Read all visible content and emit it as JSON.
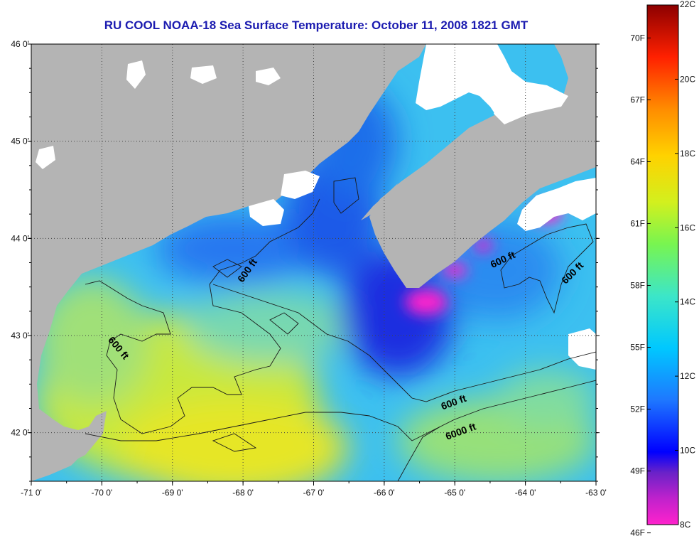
{
  "title": "RU COOL  NOAA-18  Sea Surface Temperature:  October 11, 2008 1821 GMT",
  "map": {
    "lon_range": [
      -71,
      -63
    ],
    "lat_range": [
      41.5,
      46
    ],
    "lon_ticks": [
      -71,
      -70,
      -69,
      -68,
      -67,
      -66,
      -65,
      -64,
      -63
    ],
    "lat_ticks": [
      42,
      43,
      44,
      45,
      46
    ],
    "lon_labels": [
      "-71 0'",
      "-70 0'",
      "-69 0'",
      "-68 0'",
      "-67 0'",
      "-66 0'",
      "-65 0'",
      "-64 0'",
      "-63 0'"
    ],
    "lat_labels": [
      "42 0'",
      "43 0'",
      "44 0'",
      "45 0'",
      "46 0'"
    ],
    "grid": "dotted",
    "land_color": "#b4b4b4",
    "cloud_color": "#ffffff"
  },
  "contour_labels": [
    {
      "text": "600 ft",
      "lon": -67.9,
      "lat": 43.65,
      "angle": -55
    },
    {
      "text": "600 ft",
      "lon": -69.8,
      "lat": 42.85,
      "angle": 50
    },
    {
      "text": "600 ft",
      "lon": -64.3,
      "lat": 43.75,
      "angle": -25
    },
    {
      "text": "600 ft",
      "lon": -63.3,
      "lat": 43.62,
      "angle": -45
    },
    {
      "text": "600 ft",
      "lon": -65.0,
      "lat": 42.28,
      "angle": -20
    },
    {
      "text": "6000 ft",
      "lon": -64.9,
      "lat": 41.98,
      "angle": -20
    }
  ],
  "colorbar": {
    "range_c": [
      8,
      22
    ],
    "celsius_labels": [
      "22C",
      "20C",
      "18C",
      "16C",
      "14C",
      "12C",
      "10C",
      "8C"
    ],
    "celsius_values": [
      22,
      20,
      18,
      16,
      14,
      12,
      10,
      8
    ],
    "fahrenheit_labels": [
      "70F",
      "67F",
      "64F",
      "61F",
      "58F",
      "55F",
      "52F",
      "49F",
      "46F"
    ],
    "fahrenheit_values": [
      70,
      67,
      64,
      61,
      58,
      55,
      52,
      49,
      46
    ],
    "colors": [
      "#ff22cc",
      "#7d22c8",
      "#0000ff",
      "#1e6eff",
      "#00c8ff",
      "#3ce6c8",
      "#78ff50",
      "#d2f01e",
      "#ffd200",
      "#ff8c00",
      "#ff2000",
      "#960000"
    ]
  }
}
